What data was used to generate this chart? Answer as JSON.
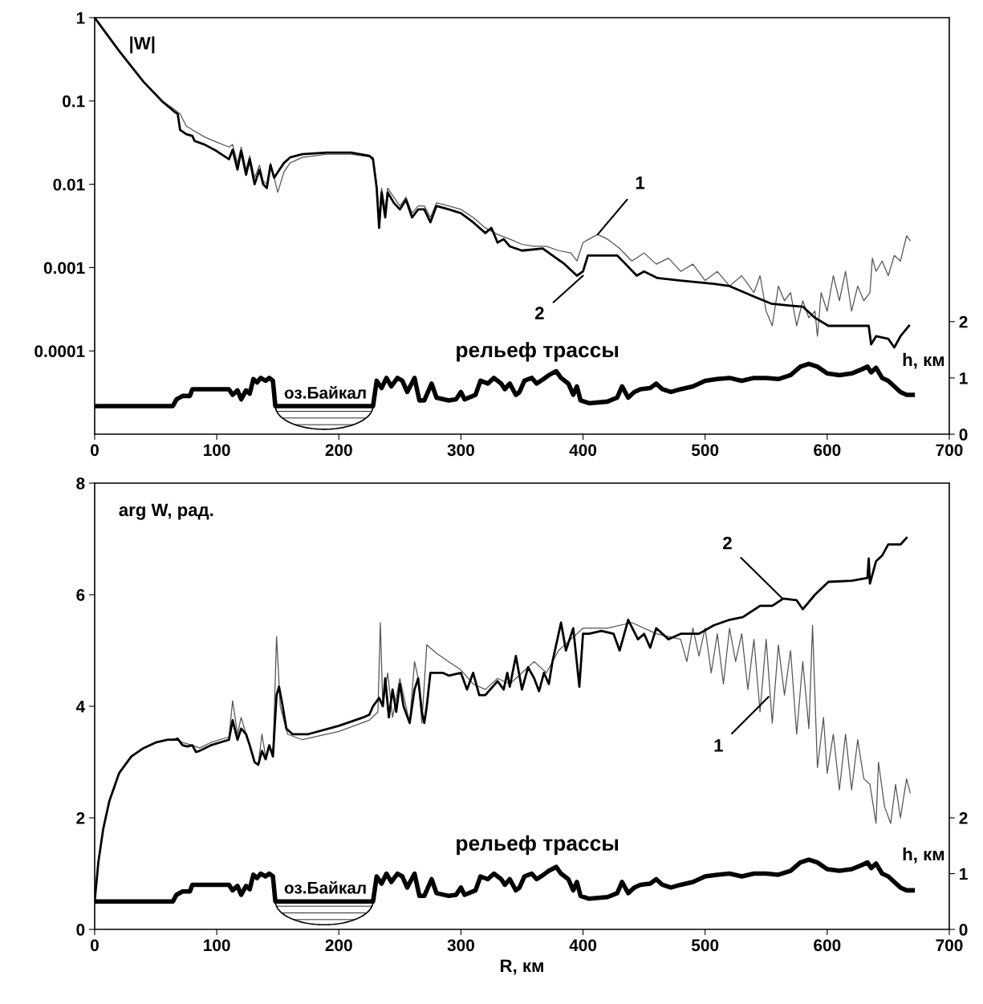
{
  "chart_data": [
    {
      "type": "line",
      "ylabel": "|W|",
      "y2label": "h, км",
      "log": "y",
      "xlim": [
        0,
        700
      ],
      "xticks": [
        0,
        100,
        200,
        300,
        400,
        500,
        600,
        700
      ],
      "ylim": [
        1e-05,
        1
      ],
      "yticks": [
        1,
        0.1,
        0.01,
        0.001,
        0.0001
      ],
      "y2lim": [
        0,
        7.4
      ],
      "y2ticks": [
        0,
        1,
        2
      ],
      "series": [
        {
          "color": "#555555",
          "x": [
            0,
            20,
            40,
            55,
            65,
            70,
            75,
            80,
            90,
            100,
            110,
            113,
            117,
            120,
            124,
            127,
            131,
            135,
            138,
            141,
            144,
            147,
            150,
            155,
            160,
            170,
            190,
            210,
            228,
            231,
            233,
            235,
            238,
            240,
            245,
            250,
            255,
            260,
            265,
            270,
            275,
            280,
            290,
            300,
            310,
            320,
            330,
            340,
            350,
            360,
            370,
            380,
            390,
            395,
            400,
            405,
            412,
            420,
            430,
            440,
            450,
            460,
            470,
            480,
            490,
            500,
            510,
            520,
            530,
            540,
            545,
            550,
            555,
            560,
            565,
            570,
            575,
            580,
            585,
            590,
            592,
            595,
            600,
            605,
            610,
            615,
            620,
            625,
            630,
            635,
            637,
            640,
            645,
            650,
            655,
            660,
            665,
            668
          ],
          "values": [
            1,
            0.4,
            0.17,
            0.1,
            0.08,
            0.07,
            0.05,
            0.045,
            0.037,
            0.032,
            0.028,
            0.03,
            0.018,
            0.028,
            0.015,
            0.022,
            0.012,
            0.017,
            0.011,
            0.01,
            0.018,
            0.012,
            0.008,
            0.014,
            0.018,
            0.021,
            0.023,
            0.023,
            0.021,
            0.01,
            0.004,
            0.009,
            0.005,
            0.009,
            0.007,
            0.0055,
            0.007,
            0.0045,
            0.0055,
            0.0055,
            0.004,
            0.006,
            0.0055,
            0.005,
            0.004,
            0.003,
            0.0025,
            0.0022,
            0.0019,
            0.0018,
            0.0018,
            0.0016,
            0.0015,
            0.0012,
            0.002,
            0.0022,
            0.0025,
            0.0022,
            0.0017,
            0.0012,
            0.0015,
            0.0011,
            0.0013,
            0.0009,
            0.0011,
            0.0007,
            0.0009,
            0.0006,
            0.0008,
            0.0005,
            0.0008,
            0.0003,
            0.0002,
            0.0006,
            0.0004,
            0.0005,
            0.0002,
            0.0004,
            0.00025,
            0.0003,
            0.00015,
            0.0005,
            0.0003,
            0.0008,
            0.0004,
            0.0009,
            0.0003,
            0.0006,
            0.0004,
            0.0005,
            0.0013,
            0.0009,
            0.0012,
            0.0008,
            0.0014,
            0.0012,
            0.0024,
            0.0021
          ]
        },
        {
          "color": "#000000",
          "x": [
            0,
            20,
            40,
            55,
            65,
            68,
            70,
            75,
            80,
            82,
            90,
            100,
            110,
            113,
            117,
            120,
            124,
            127,
            131,
            135,
            138,
            141,
            144,
            147,
            150,
            155,
            160,
            170,
            190,
            210,
            225,
            228,
            231,
            233,
            235,
            238,
            240,
            245,
            250,
            255,
            260,
            265,
            270,
            275,
            280,
            290,
            300,
            310,
            320,
            325,
            330,
            335,
            340,
            350,
            367,
            385,
            395,
            400,
            404,
            420,
            428,
            435,
            444,
            450,
            461,
            480,
            507,
            520,
            540,
            554,
            570,
            580,
            590,
            601,
            620,
            634,
            636,
            640,
            650,
            655,
            660,
            667
          ],
          "values": [
            1,
            0.4,
            0.17,
            0.1,
            0.075,
            0.07,
            0.045,
            0.04,
            0.038,
            0.033,
            0.03,
            0.025,
            0.02,
            0.026,
            0.015,
            0.025,
            0.013,
            0.02,
            0.01,
            0.015,
            0.01,
            0.009,
            0.017,
            0.012,
            0.014,
            0.018,
            0.021,
            0.023,
            0.024,
            0.024,
            0.022,
            0.02,
            0.009,
            0.003,
            0.008,
            0.004,
            0.008,
            0.006,
            0.005,
            0.0065,
            0.004,
            0.005,
            0.005,
            0.0035,
            0.0055,
            0.005,
            0.0045,
            0.0035,
            0.0026,
            0.003,
            0.002,
            0.0022,
            0.0018,
            0.0016,
            0.0017,
            0.0011,
            0.0008,
            0.0009,
            0.0014,
            0.0014,
            0.0014,
            0.0011,
            0.0008,
            0.0009,
            0.00075,
            0.0007,
            0.00064,
            0.0006,
            0.00045,
            0.00037,
            0.00035,
            0.00034,
            0.00025,
            0.0002,
            0.0002,
            0.0002,
            0.00012,
            0.00015,
            0.00014,
            0.00011,
            0.00015,
            0.0002
          ]
        },
        {
          "color": "#000000",
          "axis": "y2",
          "x": [
            0,
            64,
            67,
            72,
            78,
            80,
            110,
            113,
            117,
            120,
            124,
            127,
            130,
            133,
            136,
            140,
            143,
            146,
            148,
            228,
            231,
            235,
            239,
            243,
            248,
            252,
            256,
            262,
            266,
            270,
            276,
            280,
            290,
            296,
            300,
            303,
            312,
            316,
            322,
            327,
            333,
            336,
            340,
            345,
            348,
            352,
            358,
            362,
            367,
            372,
            378,
            382,
            388,
            392,
            395,
            398,
            405,
            420,
            428,
            432,
            437,
            442,
            447,
            455,
            460,
            465,
            472,
            480,
            490,
            500,
            510,
            520,
            530,
            540,
            550,
            560,
            570,
            578,
            585,
            592,
            600,
            610,
            620,
            628,
            633,
            636,
            640,
            645,
            650,
            655,
            660,
            665,
            670
          ],
          "values": [
            0.5,
            0.5,
            0.62,
            0.68,
            0.68,
            0.8,
            0.8,
            0.7,
            0.78,
            0.62,
            0.78,
            0.72,
            0.98,
            0.92,
            1.0,
            0.95,
            1.0,
            0.95,
            0.5,
            0.5,
            0.95,
            0.82,
            1.0,
            0.85,
            1.0,
            0.95,
            0.75,
            1.0,
            0.6,
            0.6,
            0.9,
            0.65,
            0.6,
            0.62,
            0.75,
            0.62,
            0.7,
            0.95,
            0.9,
            1.0,
            0.9,
            0.8,
            0.9,
            0.7,
            0.75,
            0.95,
            1.0,
            0.9,
            0.97,
            1.05,
            1.12,
            1.0,
            0.9,
            0.7,
            0.85,
            0.6,
            0.55,
            0.58,
            0.65,
            0.85,
            0.65,
            0.75,
            0.8,
            0.82,
            0.9,
            0.8,
            0.75,
            0.8,
            0.85,
            0.95,
            0.98,
            1.0,
            0.95,
            1.0,
            1.0,
            0.98,
            1.05,
            1.2,
            1.25,
            1.2,
            1.08,
            1.05,
            1.08,
            1.15,
            1.2,
            1.1,
            1.18,
            1.0,
            0.95,
            0.85,
            0.75,
            0.7,
            0.7
          ]
        }
      ],
      "annotations": [
        {
          "text": "1",
          "x": 412,
          "y": 0.0025
        },
        {
          "text": "2",
          "x": 400,
          "y": 0.0008
        },
        "рельеф трассы",
        "оз.Байкал"
      ]
    },
    {
      "type": "line",
      "ylabel": "arg W, рад.",
      "y2label": "h, км",
      "xlabel": "R, км",
      "xlim": [
        0,
        700
      ],
      "xticks": [
        0,
        100,
        200,
        300,
        400,
        500,
        600,
        700
      ],
      "ylim": [
        0,
        8
      ],
      "yticks": [
        0,
        2,
        4,
        6,
        8
      ],
      "y2lim": [
        0,
        8
      ],
      "y2ticks": [
        0,
        1,
        2
      ],
      "series": [
        {
          "color": "#555555",
          "x": [
            0,
            3,
            7,
            12,
            20,
            30,
            40,
            50,
            60,
            68,
            72,
            80,
            86,
            95,
            110,
            113,
            117,
            120,
            124,
            127,
            131,
            134,
            137,
            140,
            143,
            146,
            149,
            152,
            158,
            170,
            200,
            225,
            232,
            234,
            236,
            240,
            244,
            250,
            258,
            262,
            265,
            268,
            272,
            280,
            290,
            300,
            310,
            320,
            330,
            340,
            350,
            360,
            370,
            380,
            390,
            400,
            420,
            440,
            460,
            480,
            485,
            490,
            495,
            500,
            505,
            510,
            515,
            520,
            525,
            530,
            535,
            540,
            545,
            550,
            555,
            560,
            565,
            570,
            575,
            580,
            585,
            588,
            592,
            597,
            600,
            605,
            610,
            615,
            620,
            625,
            630,
            635,
            640,
            642,
            647,
            652,
            656,
            660,
            665,
            668
          ],
          "values": [
            0.5,
            1.2,
            1.8,
            2.3,
            2.8,
            3.1,
            3.25,
            3.35,
            3.4,
            3.4,
            3.35,
            3.3,
            3.25,
            3.35,
            3.45,
            4.1,
            3.5,
            3.8,
            3.5,
            3.3,
            3.0,
            2.95,
            3.5,
            3.1,
            3.3,
            3.1,
            5.25,
            4.0,
            3.5,
            3.4,
            3.55,
            3.75,
            3.9,
            5.5,
            4.0,
            4.6,
            3.8,
            4.5,
            3.7,
            4.8,
            4.5,
            3.7,
            5.1,
            4.95,
            4.8,
            4.65,
            4.4,
            4.3,
            4.5,
            4.4,
            4.6,
            4.8,
            4.6,
            5.0,
            5.2,
            5.4,
            5.4,
            5.5,
            5.3,
            5.2,
            4.8,
            5.4,
            4.9,
            5.4,
            4.6,
            5.3,
            4.4,
            5.4,
            4.8,
            5.3,
            4.3,
            5.2,
            3.9,
            5.2,
            3.7,
            5.1,
            4.2,
            5.0,
            3.5,
            4.8,
            3.6,
            5.45,
            2.9,
            3.8,
            2.8,
            3.5,
            2.5,
            3.5,
            2.5,
            3.4,
            2.7,
            2.6,
            1.9,
            3.0,
            2.2,
            1.9,
            2.6,
            2.0,
            2.7,
            2.45
          ]
        },
        {
          "color": "#000000",
          "x": [
            0,
            3,
            7,
            12,
            20,
            30,
            40,
            50,
            60,
            65,
            68,
            72,
            76,
            80,
            83,
            86,
            95,
            110,
            113,
            117,
            120,
            124,
            127,
            131,
            134,
            137,
            140,
            143,
            146,
            149,
            151,
            154,
            157,
            162,
            175,
            200,
            220,
            225,
            228,
            233,
            236,
            238,
            241,
            244,
            247,
            250,
            253,
            258,
            262,
            265,
            268,
            270,
            272,
            275,
            285,
            290,
            300,
            305,
            310,
            315,
            320,
            330,
            335,
            338,
            340,
            345,
            350,
            355,
            360,
            364,
            368,
            372,
            375,
            382,
            386,
            392,
            397,
            400,
            405,
            415,
            425,
            430,
            437,
            445,
            450,
            455,
            460,
            470,
            480,
            495,
            507,
            520,
            531,
            545,
            555,
            564,
            575,
            580,
            590,
            601,
            620,
            633,
            634,
            635,
            640,
            645,
            650,
            660,
            665
          ],
          "values": [
            0.5,
            1.2,
            1.8,
            2.3,
            2.8,
            3.1,
            3.25,
            3.35,
            3.4,
            3.4,
            3.42,
            3.3,
            3.28,
            3.3,
            3.18,
            3.2,
            3.3,
            3.4,
            3.75,
            3.4,
            3.6,
            3.5,
            3.3,
            3.0,
            2.95,
            3.2,
            3.05,
            3.3,
            3.1,
            4.2,
            4.35,
            4.0,
            3.6,
            3.5,
            3.5,
            3.65,
            3.8,
            3.85,
            4.0,
            4.15,
            4.0,
            4.5,
            3.8,
            4.3,
            3.9,
            4.4,
            4.0,
            3.7,
            4.3,
            4.5,
            3.9,
            3.7,
            4.0,
            4.6,
            4.6,
            4.55,
            4.6,
            4.3,
            4.6,
            4.2,
            4.2,
            4.45,
            4.3,
            4.6,
            4.35,
            4.9,
            4.3,
            4.7,
            4.5,
            4.27,
            4.6,
            4.4,
            4.8,
            5.5,
            5.0,
            5.4,
            4.35,
            5.3,
            5.3,
            5.35,
            5.3,
            5.0,
            5.55,
            5.2,
            5.3,
            5.05,
            5.4,
            5.2,
            5.3,
            5.3,
            5.45,
            5.55,
            5.6,
            5.8,
            5.8,
            5.93,
            5.9,
            5.74,
            6.0,
            6.23,
            6.25,
            6.3,
            6.65,
            6.2,
            6.6,
            6.7,
            6.9,
            6.9,
            7.02
          ]
        },
        {
          "color": "#000000",
          "axis": "y2",
          "x": [
            0,
            64,
            67,
            72,
            78,
            80,
            110,
            113,
            117,
            120,
            124,
            127,
            130,
            133,
            136,
            140,
            143,
            146,
            148,
            228,
            231,
            235,
            239,
            243,
            248,
            252,
            256,
            262,
            266,
            270,
            276,
            280,
            290,
            296,
            300,
            303,
            312,
            316,
            322,
            327,
            333,
            336,
            340,
            345,
            348,
            352,
            358,
            362,
            367,
            372,
            378,
            382,
            388,
            392,
            395,
            398,
            405,
            420,
            428,
            432,
            437,
            442,
            447,
            455,
            460,
            465,
            472,
            480,
            490,
            500,
            510,
            520,
            530,
            540,
            550,
            560,
            570,
            578,
            585,
            592,
            600,
            610,
            620,
            628,
            633,
            636,
            640,
            645,
            650,
            655,
            660,
            665,
            670
          ],
          "values": [
            0.5,
            0.5,
            0.62,
            0.68,
            0.68,
            0.8,
            0.8,
            0.7,
            0.78,
            0.62,
            0.78,
            0.72,
            0.98,
            0.92,
            1.0,
            0.95,
            1.0,
            0.95,
            0.5,
            0.5,
            0.95,
            0.82,
            1.0,
            0.85,
            1.0,
            0.95,
            0.75,
            1.0,
            0.6,
            0.6,
            0.9,
            0.65,
            0.6,
            0.62,
            0.75,
            0.62,
            0.7,
            0.95,
            0.9,
            1.0,
            0.9,
            0.8,
            0.9,
            0.7,
            0.75,
            0.95,
            1.0,
            0.9,
            0.97,
            1.05,
            1.12,
            1.0,
            0.9,
            0.7,
            0.85,
            0.6,
            0.55,
            0.58,
            0.65,
            0.85,
            0.65,
            0.75,
            0.8,
            0.82,
            0.9,
            0.8,
            0.75,
            0.8,
            0.85,
            0.95,
            0.98,
            1.0,
            0.95,
            1.0,
            1.0,
            0.98,
            1.05,
            1.2,
            1.25,
            1.2,
            1.08,
            1.05,
            1.08,
            1.15,
            1.2,
            1.1,
            1.18,
            1.0,
            0.95,
            0.85,
            0.75,
            0.7,
            0.7
          ]
        }
      ],
      "annotations": [
        {
          "text": "2",
          "x": 563,
          "y": 5.94
        },
        {
          "text": "1",
          "x": 552,
          "y": 4.17
        },
        "рельеф трассы",
        "оз.Байкал"
      ]
    }
  ]
}
